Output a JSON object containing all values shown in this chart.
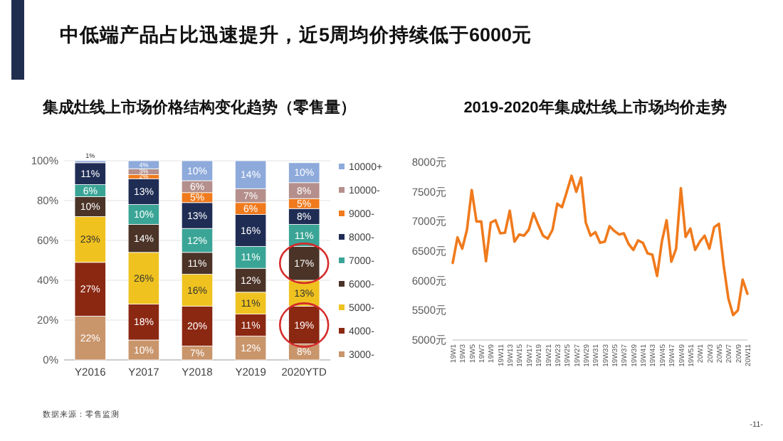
{
  "chart_data": [
    {
      "type": "bar",
      "stacked": true,
      "title": "集成灶线上市场价格结构变化趋势（零售量）",
      "annotations": [
        "中低端产品占比迅速提升，近5周均价持续低于6000元",
        "数据来源：零售监测"
      ],
      "categories": [
        "Y2016",
        "Y2017",
        "Y2018",
        "Y2019",
        "2020YTD"
      ],
      "ylim": [
        0,
        100
      ],
      "yticks": [
        {
          "value": 0,
          "label": "0%"
        },
        {
          "value": 20,
          "label": "20%"
        },
        {
          "value": 40,
          "label": "40%"
        },
        {
          "value": 60,
          "label": "60%"
        },
        {
          "value": 80,
          "label": "80%"
        },
        {
          "value": 100,
          "label": "100%"
        }
      ],
      "grid": "y",
      "legend": "right",
      "series": [
        {
          "name": "3000-",
          "color": "#c9956b",
          "values": [
            22,
            10,
            7,
            12,
            8
          ],
          "value_labels": [
            "22%",
            "10%",
            "7%",
            "12%",
            "8%"
          ]
        },
        {
          "name": "4000-",
          "color": "#8b2812",
          "values": [
            27,
            18,
            20,
            11,
            19
          ],
          "value_labels": [
            "27%",
            "18%",
            "20%",
            "11%",
            "19%"
          ]
        },
        {
          "name": "5000-",
          "color": "#efc21f",
          "values": [
            23,
            26,
            16,
            11,
            13
          ],
          "value_labels": [
            "23%",
            "26%",
            "16%",
            "11%",
            "13%"
          ]
        },
        {
          "name": "6000-",
          "color": "#4b3327",
          "values": [
            10,
            14,
            11,
            12,
            17
          ],
          "value_labels": [
            "10%",
            "14%",
            "11%",
            "12%",
            "17%"
          ]
        },
        {
          "name": "7000-",
          "color": "#3aa596",
          "values": [
            6,
            10,
            12,
            11,
            11
          ],
          "value_labels": [
            "6%",
            "10%",
            "12%",
            "11%",
            "11%"
          ]
        },
        {
          "name": "8000-",
          "color": "#1f2d55",
          "values": [
            11,
            13,
            13,
            16,
            8
          ],
          "value_labels": [
            "11%",
            "13%",
            "13%",
            "16%",
            "8%"
          ]
        },
        {
          "name": "9000-",
          "color": "#f07a1c",
          "values": [
            null,
            2,
            5,
            6,
            5
          ],
          "value_labels": [
            null,
            "2%",
            "5%",
            "6%",
            "5%"
          ]
        },
        {
          "name": "10000-",
          "color": "#b48f8c",
          "values": [
            null,
            3,
            6,
            7,
            8
          ],
          "value_labels": [
            null,
            "3%",
            "6%",
            "7%",
            "8%"
          ]
        },
        {
          "name": "10000+",
          "color": "#8eaadb",
          "values": [
            1,
            4,
            10,
            14,
            10
          ],
          "value_labels": [
            "1%",
            "4%",
            "10%",
            "14%",
            "10%"
          ]
        }
      ]
    },
    {
      "type": "line",
      "title": "2019-2020年集成灶线上市场均价走势",
      "annotations": [
        "-11-"
      ],
      "categories": [
        "19W1",
        null,
        "19W3",
        null,
        "19W5",
        null,
        "19W7",
        null,
        "19W9",
        null,
        "19W11",
        null,
        "19W13",
        null,
        "19W15",
        null,
        "19W17",
        null,
        "19W19",
        null,
        "19W21",
        null,
        "19W23",
        null,
        "19W25",
        null,
        "19W27",
        null,
        "19W29",
        null,
        "19W31",
        null,
        "19W33",
        null,
        "19W35",
        null,
        "19W37",
        null,
        "19W39",
        null,
        "19W41",
        null,
        "19W43",
        null,
        "19W45",
        null,
        "19W47",
        null,
        "19W49",
        null,
        "19W51",
        null,
        "20W1",
        null,
        "20W3",
        null,
        "20W5",
        null,
        "20W7",
        null,
        "20W9",
        null,
        "20W11"
      ],
      "ylim": [
        5000,
        8000
      ],
      "yticks": [
        {
          "value": 5000,
          "label": "5000元"
        },
        {
          "value": 5500,
          "label": "5500元"
        },
        {
          "value": 6000,
          "label": "6000元"
        },
        {
          "value": 6500,
          "label": "6500元"
        },
        {
          "value": 7000,
          "label": "7000元"
        },
        {
          "value": 7500,
          "label": "7500元"
        },
        {
          "value": 8000,
          "label": "8000元"
        }
      ],
      "series": [
        {
          "color": "#f07a1c",
          "values": [
            6300,
            6730,
            6540,
            6860,
            7530,
            7000,
            7000,
            6330,
            6980,
            7020,
            6800,
            6810,
            7180,
            6660,
            6780,
            6760,
            6860,
            7140,
            6940,
            6760,
            6710,
            6860,
            7300,
            7240,
            7500,
            7770,
            7500,
            7740,
            6980,
            6760,
            6820,
            6640,
            6660,
            6920,
            6840,
            6780,
            6800,
            6620,
            6520,
            6680,
            6640,
            6460,
            6440,
            6080,
            6660,
            7020,
            6320,
            6540,
            7560,
            6740,
            6880,
            6520,
            6660,
            6760,
            6540,
            6900,
            6960,
            6260,
            5700,
            5420,
            5500,
            6020,
            5780
          ]
        }
      ]
    }
  ]
}
